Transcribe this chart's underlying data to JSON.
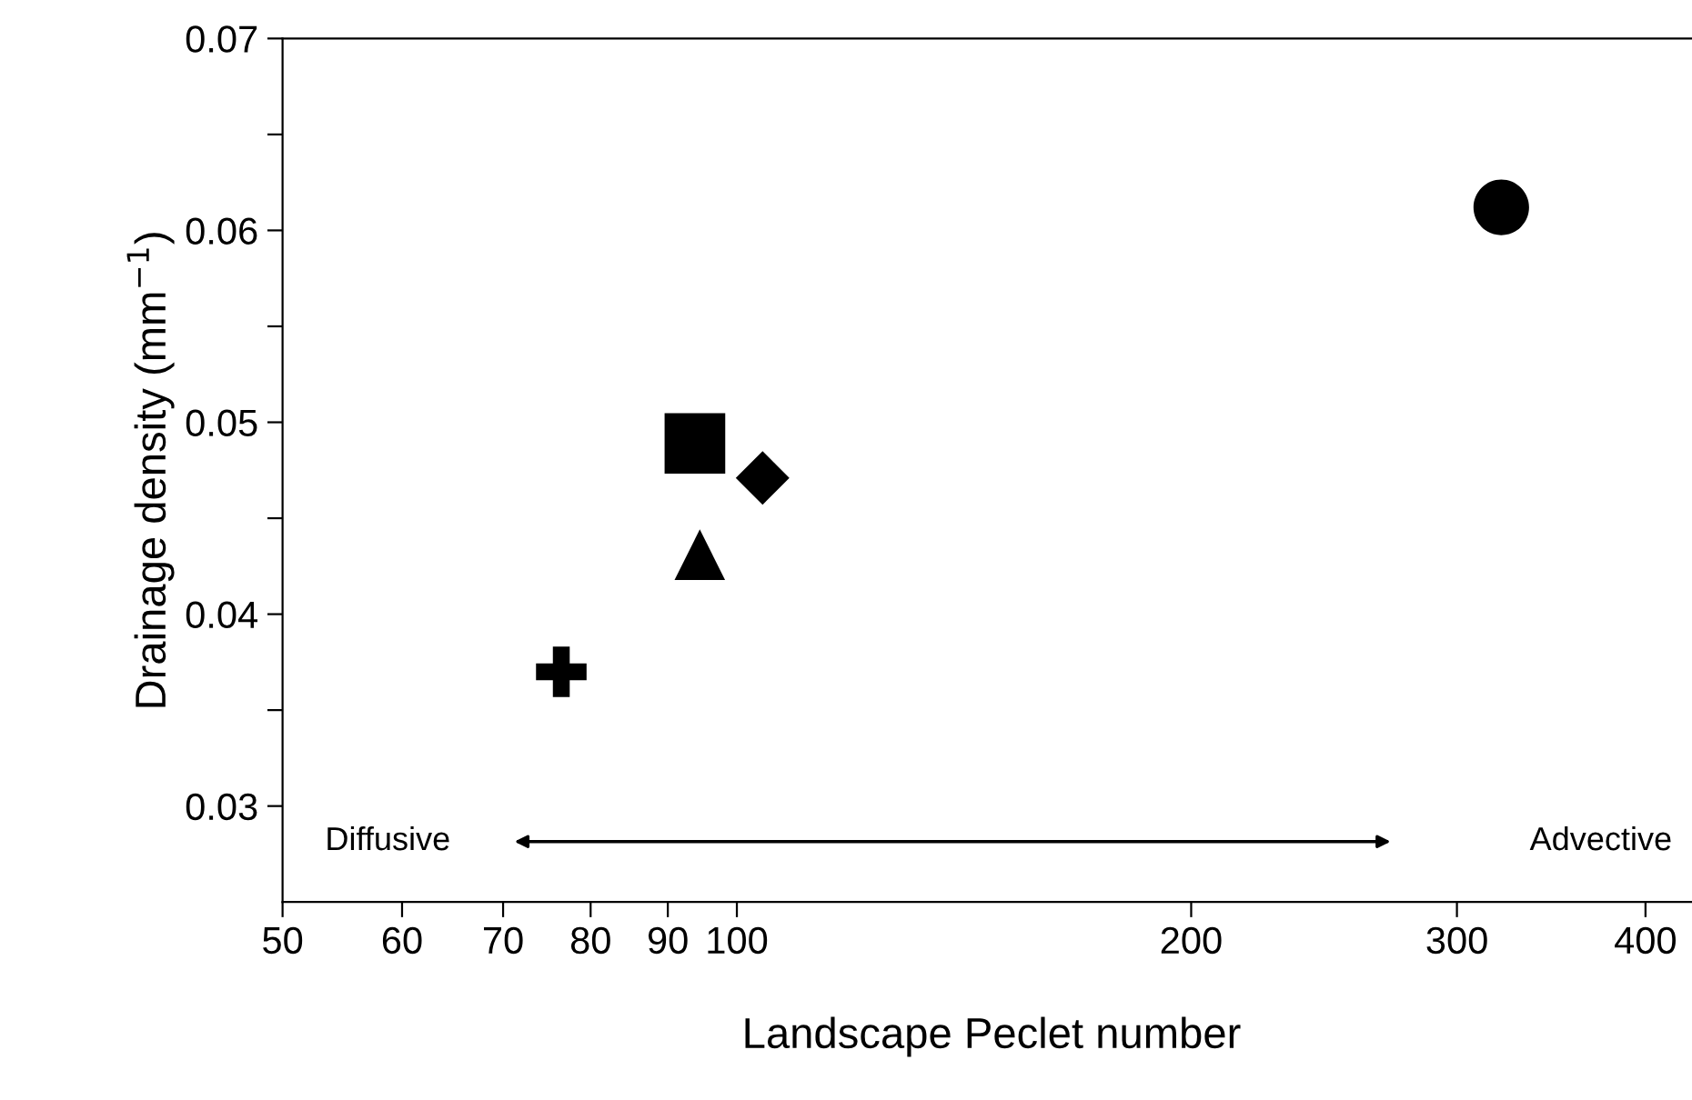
{
  "chart_data": {
    "type": "scatter",
    "xlabel": "Landscape Peclet number",
    "ylabel": "Drainage density (mm$^{−1}$)",
    "log": "x",
    "xlim": [
      50,
      435
    ],
    "xticks": [
      50,
      60,
      70,
      80,
      90,
      100,
      200,
      300,
      400
    ],
    "ylim": [
      0.025,
      0.07
    ],
    "yticks": [
      0.03,
      {
        "value": 0.035,
        "label": null
      },
      0.04,
      {
        "value": 0.045,
        "label": null
      },
      0.05,
      {
        "value": 0.055,
        "label": null
      },
      0.06,
      {
        "value": 0.065,
        "label": null
      },
      0.07
    ],
    "grid": false,
    "series": [
      {
        "color": "#000000",
        "marker": "cross",
        "x": [
          76.5
        ],
        "values": [
          0.037
        ]
      },
      {
        "color": "#000000",
        "marker": "square",
        "x": [
          93.8
        ],
        "values": [
          0.0489
        ]
      },
      {
        "color": "#000000",
        "marker": "triangle",
        "x": [
          94.5
        ],
        "values": [
          0.0431
        ]
      },
      {
        "color": "#000000",
        "marker": "diamond",
        "x": [
          104
        ],
        "values": [
          0.0471
        ]
      },
      {
        "color": "#000000",
        "marker": "circle",
        "x": [
          321
        ],
        "values": [
          0.0612
        ]
      }
    ],
    "annotations": [
      "Diffusive",
      "Advective"
    ]
  }
}
